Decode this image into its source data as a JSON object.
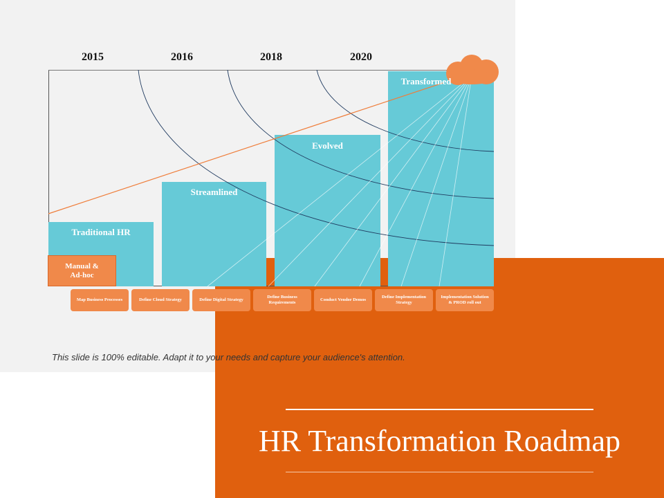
{
  "title": "HR Transformation Roadmap",
  "years": [
    "2015",
    "2016",
    "2018",
    "2020"
  ],
  "stages": [
    {
      "label": "Traditional HR"
    },
    {
      "label": "Streamlined"
    },
    {
      "label": "Evolved"
    },
    {
      "label": "Transformed"
    }
  ],
  "base_box": "Manual &\nAd-hoc",
  "steps": [
    "Map Business Processes",
    "Define Cloud Strategy",
    "Define Digital Strategy",
    "Define Business Requirements",
    "Conduct Vendor Demos",
    "Define Implementation Strategy",
    "Implementation Solution & PROD roll out"
  ],
  "caption": "This slide is 100% editable. Adapt it to your needs and capture your audience's attention.",
  "colors": {
    "bar": "#66cad7",
    "accent": "#e0600e",
    "step": "#f0894a",
    "panel": "#f2f2f2"
  },
  "icons": {
    "top_right": "cloud-icon"
  }
}
